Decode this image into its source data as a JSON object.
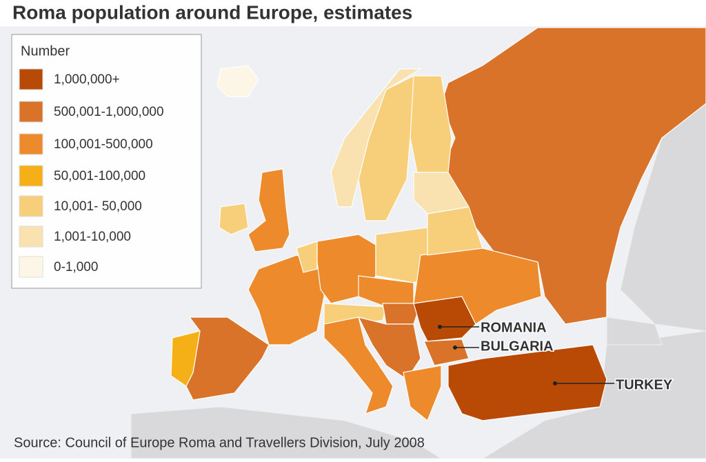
{
  "title": "Roma population around Europe, estimates",
  "legend": {
    "title": "Number",
    "items": [
      {
        "label": "1,000,000+",
        "color": "#b84a06"
      },
      {
        "label": "500,001-1,000,000",
        "color": "#d9732a"
      },
      {
        "label": "100,001-500,000",
        "color": "#ec8a2c"
      },
      {
        "label": "50,001-100,000",
        "color": "#f5b017"
      },
      {
        "label": "10,001- 50,000",
        "color": "#f7cf7a"
      },
      {
        "label": "1,001-10,000",
        "color": "#f9e2b0"
      },
      {
        "label": "0-1,000",
        "color": "#fdf6e6"
      }
    ]
  },
  "labels": [
    "ROMANIA",
    "BULGARIA",
    "TURKEY"
  ],
  "source": "Source: Council of Europe Roma and Travellers Division, July 2008"
}
